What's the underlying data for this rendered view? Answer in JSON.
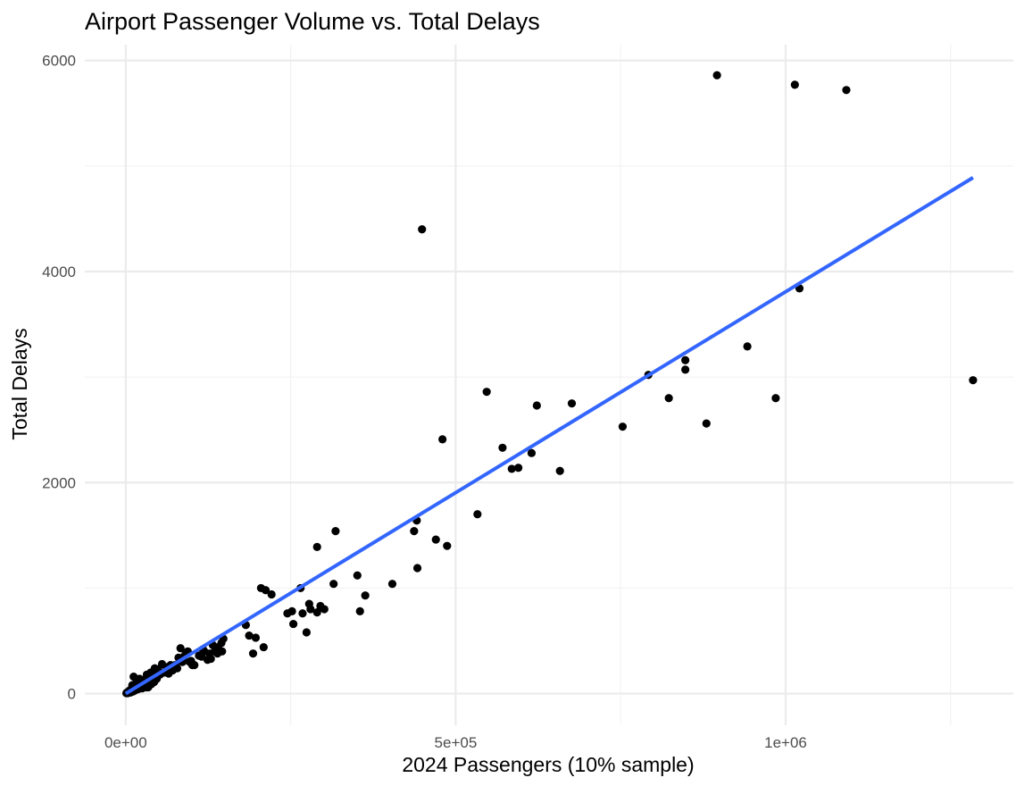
{
  "chart_data": {
    "type": "scatter",
    "title": "Airport Passenger Volume vs. Total Delays",
    "xlabel": "2024 Passengers (10% sample)",
    "ylabel": "Total Delays",
    "x_ticks": [
      {
        "value": 0,
        "label": "0e+00"
      },
      {
        "value": 500000,
        "label": "5e+05"
      },
      {
        "value": 1000000,
        "label": "1e+06"
      }
    ],
    "y_ticks": [
      {
        "value": 0,
        "label": "0"
      },
      {
        "value": 2000,
        "label": "2000"
      },
      {
        "value": 4000,
        "label": "4000"
      },
      {
        "value": 6000,
        "label": "6000"
      }
    ],
    "xlim": [
      -62000,
      1345000
    ],
    "ylim": [
      -300,
      6150
    ],
    "grid": true,
    "point_color": "#000000",
    "trend_color": "#3366ff",
    "trend_line": {
      "x": [
        0,
        1284000
      ],
      "y": [
        0,
        4890
      ]
    },
    "points": {
      "x": [
        1284000,
        1092000,
        1014000,
        896000,
        1021000,
        985000,
        942000,
        880000,
        848000,
        848000,
        823000,
        792000,
        753000,
        676000,
        623000,
        658000,
        615000,
        571000,
        595000,
        585000,
        547000,
        533000,
        480000,
        487000,
        470000,
        449000,
        442000,
        441000,
        437000,
        404000,
        363000,
        355000,
        351000,
        318000,
        315000,
        290000,
        301000,
        295000,
        290000,
        280000,
        278000,
        274000,
        268000,
        265000,
        254000,
        252000,
        245000,
        221000,
        212000,
        209000,
        205000,
        193000,
        197000,
        187000,
        182000,
        148000,
        145000,
        140000,
        135000,
        132000,
        127000,
        124000,
        119000,
        115000,
        111000,
        104000,
        101000,
        97000,
        94000,
        91000,
        86000,
        83000,
        80000,
        78000,
        75000,
        71000,
        68000,
        65000,
        62000,
        58000,
        55000,
        52000,
        49000,
        46000,
        44000,
        41000,
        38000,
        35000,
        32000,
        29000,
        27000,
        24000,
        21000,
        19000,
        16000,
        13000,
        10000,
        8000,
        6000,
        4000,
        2000,
        1000,
        47000,
        43000,
        39000,
        34000,
        31000,
        26000,
        22000,
        18000,
        14000,
        11000,
        9000,
        7000,
        5000,
        3000,
        12000,
        25000,
        36000,
        60000,
        73000,
        88000,
        99000,
        117000,
        129000,
        139000,
        146000
      ],
      "y": [
        2970,
        5720,
        5770,
        5860,
        3840,
        2800,
        3290,
        2560,
        3160,
        3070,
        2800,
        3020,
        2530,
        2750,
        2730,
        2110,
        2280,
        2330,
        2140,
        2130,
        2860,
        1700,
        2410,
        1400,
        1460,
        4400,
        1190,
        1640,
        1540,
        1040,
        930,
        780,
        1120,
        1540,
        1040,
        770,
        800,
        830,
        1390,
        800,
        850,
        580,
        760,
        1000,
        660,
        780,
        760,
        940,
        980,
        440,
        1000,
        380,
        530,
        550,
        650,
        520,
        480,
        440,
        400,
        460,
        380,
        320,
        400,
        350,
        360,
        270,
        270,
        300,
        400,
        380,
        300,
        430,
        340,
        240,
        270,
        220,
        270,
        190,
        250,
        200,
        280,
        180,
        230,
        170,
        240,
        160,
        200,
        120,
        180,
        120,
        130,
        80,
        140,
        70,
        100,
        50,
        80,
        40,
        30,
        20,
        10,
        5,
        140,
        110,
        90,
        60,
        60,
        80,
        50,
        40,
        30,
        20,
        20,
        10,
        10,
        5,
        160,
        50,
        80,
        200,
        260,
        350,
        310,
        420,
        330,
        380,
        400
      ]
    }
  }
}
